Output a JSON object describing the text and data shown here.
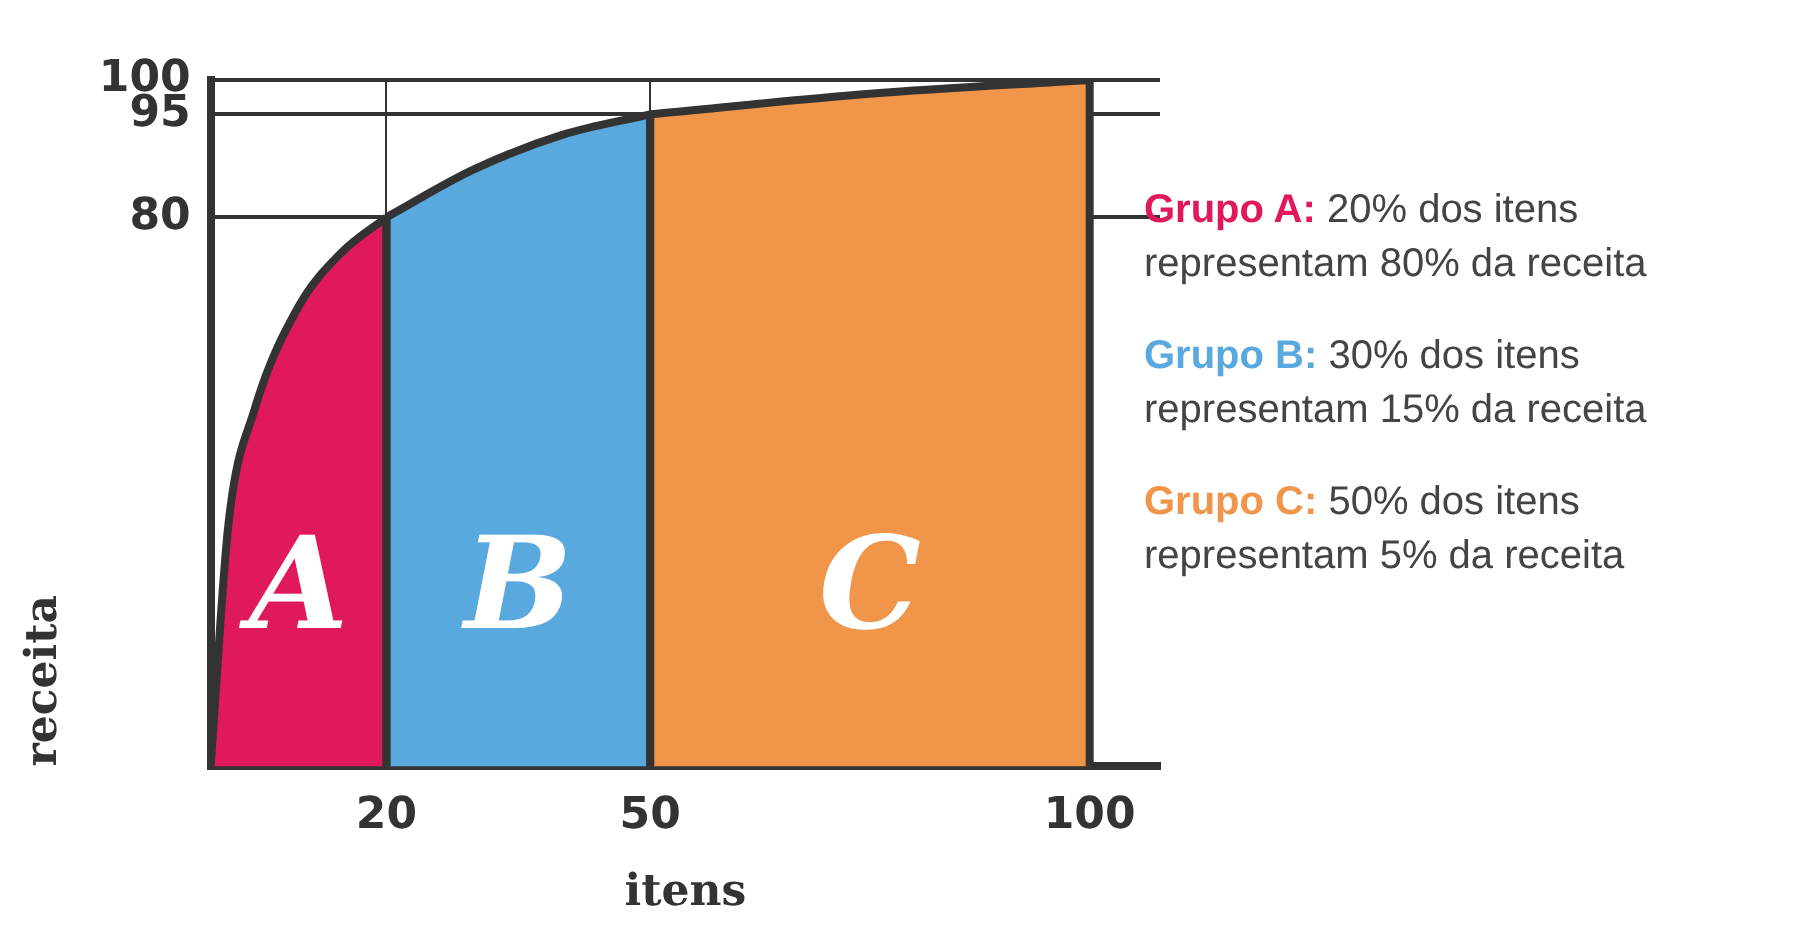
{
  "chart_data": {
    "type": "area",
    "xlabel": "itens",
    "ylabel": "receita",
    "xlim": [
      0,
      108
    ],
    "xticks": [
      20,
      50,
      100
    ],
    "ylim": [
      0,
      100
    ],
    "yticks": [
      80,
      95,
      100
    ],
    "grid": true,
    "marker": "none",
    "legend": "right",
    "series": [
      {
        "name": "Grupo A:",
        "color": "#e0195a",
        "x": [
          0,
          2,
          5,
          10,
          15,
          20
        ],
        "values": [
          0,
          35,
          52,
          67,
          75,
          80
        ]
      },
      {
        "name": "Grupo B:",
        "color": "#5aa9de",
        "x": [
          20,
          30,
          40,
          50
        ],
        "values": [
          80,
          87,
          92,
          95
        ]
      },
      {
        "name": "Grupo C:",
        "color": "#f0954a",
        "x": [
          50,
          75,
          100
        ],
        "values": [
          95,
          98,
          100
        ]
      }
    ],
    "annotations": [
      "A",
      "B",
      "C",
      "20% dos itens representam 80% da receita",
      "30% dos itens representam 15% da receita",
      "50% dos itens representam 5% da receita"
    ]
  }
}
